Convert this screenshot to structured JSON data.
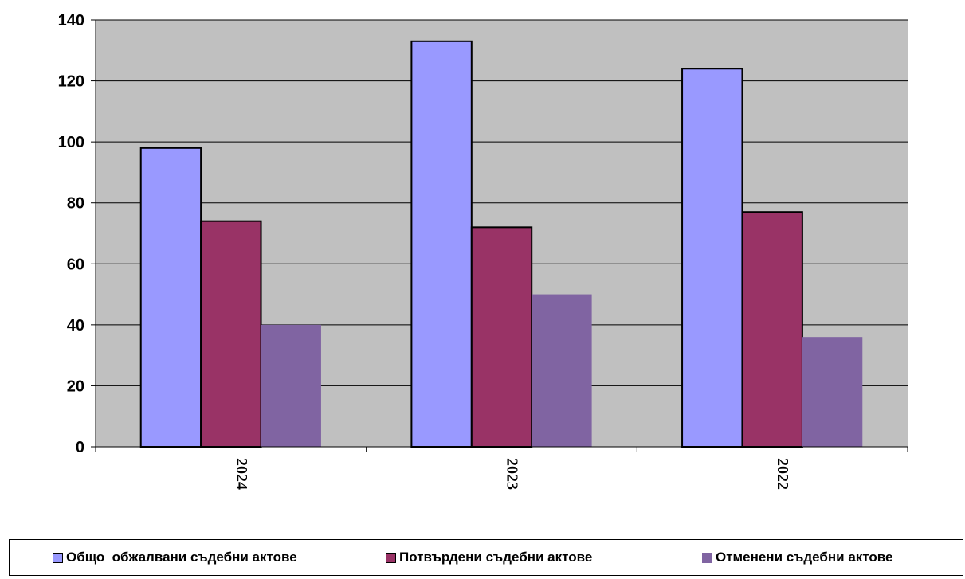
{
  "chart_data": {
    "type": "bar",
    "categories": [
      "2024",
      "2023",
      "2022"
    ],
    "series": [
      {
        "name": "Общо  обжалвани съдебни актове",
        "values": [
          98,
          133,
          124
        ],
        "color": "#9999ff",
        "outlined": true
      },
      {
        "name": "Потвърдени съдебни актове",
        "values": [
          74,
          72,
          77
        ],
        "color": "#993366",
        "outlined": true
      },
      {
        "name": "Отменени съдебни актове",
        "values": [
          40,
          50,
          36
        ],
        "color": "#8064a2",
        "outlined": false
      }
    ],
    "yticks": [
      "0",
      "20",
      "40",
      "60",
      "80",
      "100",
      "120",
      "140"
    ],
    "ylim": [
      0,
      140
    ],
    "plot_background": "#c0c0c0",
    "grid": true,
    "legend_position": "bottom",
    "title": "",
    "xlabel": "",
    "ylabel": ""
  }
}
